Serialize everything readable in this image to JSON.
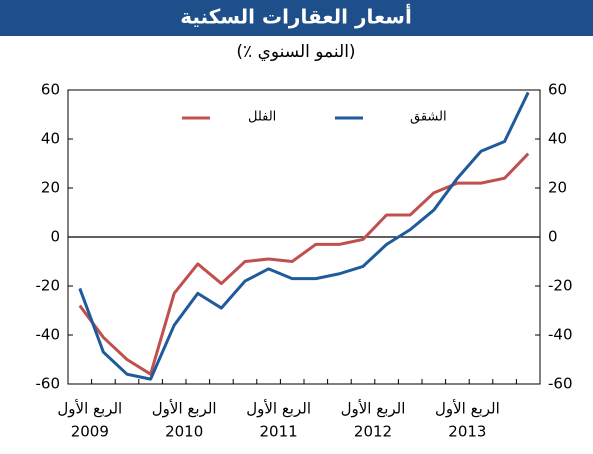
{
  "chart_data": {
    "type": "line",
    "title": "أسعار العقارات السكنية",
    "subtitle": "(النمو السنوي ٪)",
    "categories": [
      "الربع الأول",
      null,
      null,
      null,
      "الربع الأول",
      null,
      null,
      null,
      "الربع الأول",
      null,
      null,
      null,
      "الربع الأول",
      null,
      null,
      null,
      "الربع الأول",
      null,
      null,
      null
    ],
    "years": [
      "2009",
      "2010",
      "2011",
      "2012",
      "2013"
    ],
    "series": [
      {
        "name": "الفلل",
        "color": "#c0504d",
        "values": [
          -28,
          -41,
          -50,
          -56,
          -23,
          -11,
          -19,
          -10,
          -9,
          -10,
          -3,
          -3,
          -1,
          9,
          9,
          18,
          22,
          22,
          24,
          34
        ]
      },
      {
        "name": "الشقق",
        "color": "#1f5a9a",
        "values": [
          -21,
          -47,
          -56,
          -58,
          -36,
          -23,
          -29,
          -18,
          -13,
          -17,
          -17,
          -15,
          -12,
          -3,
          3,
          11,
          24,
          35,
          39,
          59
        ]
      }
    ],
    "ylim": [
      -60,
      60
    ],
    "yticks": [
      -60,
      -40,
      -20,
      0,
      20,
      40,
      60
    ],
    "grid": false
  }
}
